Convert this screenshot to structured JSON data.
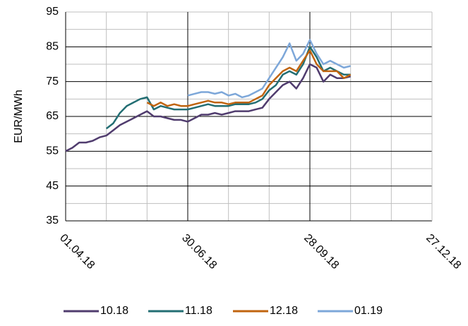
{
  "chart_data": {
    "type": "line",
    "ylabel": "EUR/MWh",
    "x": [
      "01.04.18",
      "06.04.18",
      "11.04.18",
      "16.04.18",
      "21.04.18",
      "26.04.18",
      "01.05.18",
      "06.05.18",
      "11.05.18",
      "16.05.18",
      "21.05.18",
      "26.05.18",
      "31.05.18",
      "05.06.18",
      "10.06.18",
      "15.06.18",
      "20.06.18",
      "25.06.18",
      "30.06.18",
      "05.07.18",
      "10.07.18",
      "15.07.18",
      "20.07.18",
      "25.07.18",
      "30.07.18",
      "04.08.18",
      "09.08.18",
      "14.08.18",
      "19.08.18",
      "24.08.18",
      "29.08.18",
      "03.09.18",
      "08.09.18",
      "13.09.18",
      "18.09.18",
      "23.09.18",
      "28.09.18",
      "03.10.18",
      "08.10.18",
      "13.10.18",
      "18.10.18",
      "23.10.18",
      "28.10.18"
    ],
    "series": [
      {
        "name": "10.18",
        "color": "#503c6e",
        "values": [
          55,
          56,
          57.5,
          57.5,
          58,
          59,
          59.5,
          61,
          62.5,
          63.5,
          64.5,
          65.5,
          66.5,
          65,
          65,
          64.5,
          64,
          64,
          63.5,
          64.5,
          65.5,
          65.5,
          66,
          65.5,
          66,
          66.5,
          66.5,
          66.5,
          67,
          67.5,
          70,
          72,
          74,
          75,
          73,
          76,
          80,
          79,
          75,
          77,
          76,
          76,
          76.5
        ]
      },
      {
        "name": "11.18",
        "color": "#236e73",
        "values": [
          null,
          null,
          null,
          null,
          null,
          null,
          61.5,
          63,
          66,
          68,
          69,
          70,
          70.5,
          67,
          68,
          67.5,
          67,
          67,
          67,
          67.5,
          68,
          68.5,
          68,
          68,
          68,
          68.5,
          68.5,
          68.5,
          69,
          70,
          72.5,
          74,
          77,
          78,
          77,
          80,
          85,
          82,
          78,
          79,
          78,
          77,
          77
        ]
      },
      {
        "name": "12.18",
        "color": "#c0640f",
        "values": [
          null,
          null,
          null,
          null,
          null,
          null,
          null,
          null,
          null,
          null,
          null,
          null,
          69,
          68,
          69,
          68,
          68.5,
          68,
          68,
          68.5,
          69,
          69.5,
          69,
          69,
          68.5,
          69,
          69,
          69,
          70,
          71,
          74,
          76,
          78,
          79,
          78,
          81,
          84,
          80,
          78,
          78,
          78,
          76,
          77
        ]
      },
      {
        "name": "01.19",
        "color": "#7da7d9",
        "values": [
          null,
          null,
          null,
          null,
          null,
          null,
          null,
          null,
          null,
          null,
          null,
          null,
          null,
          null,
          null,
          null,
          null,
          null,
          71,
          71.5,
          72,
          72,
          71.5,
          72,
          71,
          71.5,
          70.5,
          71,
          72,
          73,
          76,
          79,
          82,
          86,
          81,
          83,
          87,
          83,
          80,
          81,
          80,
          79,
          79.5
        ]
      }
    ],
    "xlim": [
      "01.04.18",
      "27.12.18"
    ],
    "xticks": [
      "01.04.18",
      "30.06.18",
      "28.09.18",
      "27.12.18"
    ],
    "xminor_ticks": [
      "01.05.18",
      "31.05.18",
      "30.07.18",
      "29.08.18",
      "28.10.18",
      "27.11.18"
    ],
    "ylim": [
      35,
      95
    ],
    "yticks": [
      35,
      45,
      55,
      65,
      75,
      85,
      95
    ],
    "yminor_ticks": [
      40,
      50,
      60,
      70,
      80,
      90
    ],
    "grid": true,
    "legend": "bottom"
  }
}
